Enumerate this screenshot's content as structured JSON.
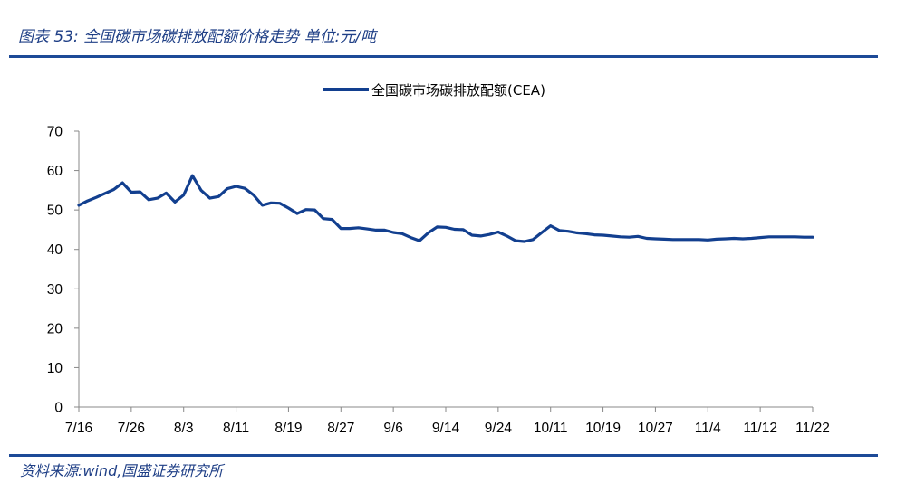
{
  "header": {
    "title": "图表 53:  全国碳市场碳排放配额价格走势  单位:元/吨"
  },
  "footer": {
    "source": "资料来源:wind,国盛证券研究所"
  },
  "colors": {
    "accent": "#1d4a97",
    "series_line": "#123f8f",
    "axis": "#888888"
  },
  "chart_data": {
    "type": "line",
    "title": "",
    "xlabel": "",
    "ylabel": "",
    "ylim": [
      0,
      70
    ],
    "yticks": [
      0,
      10,
      20,
      30,
      40,
      50,
      60,
      70
    ],
    "grid": false,
    "legend_position": "top-center",
    "x_tick_labels": [
      "7/16",
      "7/26",
      "8/3",
      "8/11",
      "8/19",
      "8/27",
      "9/6",
      "9/14",
      "9/24",
      "10/11",
      "10/19",
      "10/27",
      "11/4",
      "11/12",
      "11/22"
    ],
    "series": [
      {
        "name": "全国碳市场碳排放配额(CEA)",
        "values": [
          51.2,
          52.3,
          53.2,
          54.2,
          55.2,
          56.9,
          54.5,
          54.6,
          52.6,
          53.0,
          54.3,
          52.0,
          53.8,
          58.7,
          55.0,
          53.0,
          53.4,
          55.4,
          56.0,
          55.5,
          53.8,
          51.2,
          51.8,
          51.7,
          50.5,
          49.1,
          50.1,
          50.0,
          47.8,
          47.6,
          45.3,
          45.3,
          45.5,
          45.2,
          44.9,
          44.9,
          44.3,
          44.0,
          43.0,
          42.2,
          44.2,
          45.7,
          45.6,
          45.1,
          45.0,
          43.6,
          43.4,
          43.8,
          44.4,
          43.4,
          42.2,
          42.0,
          42.5,
          44.3,
          46.0,
          44.8,
          44.6,
          44.2,
          44.0,
          43.7,
          43.6,
          43.4,
          43.2,
          43.1,
          43.3,
          42.8,
          42.7,
          42.6,
          42.5,
          42.5,
          42.5,
          42.5,
          42.4,
          42.6,
          42.7,
          42.8,
          42.7,
          42.8,
          43.0,
          43.2,
          43.2,
          43.2,
          43.2,
          43.1,
          43.1
        ]
      }
    ]
  }
}
